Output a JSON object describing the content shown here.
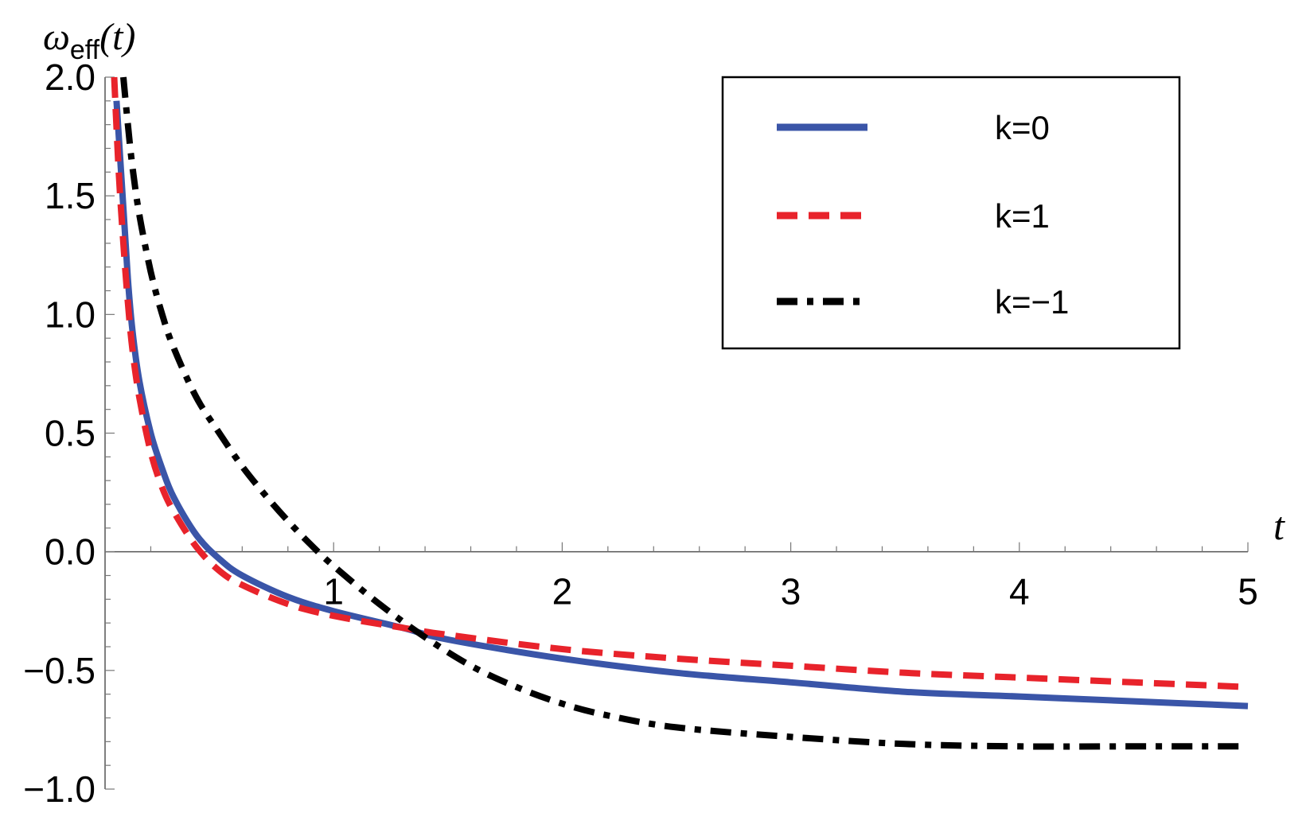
{
  "chart_data": {
    "type": "line",
    "title": "",
    "xlabel": "t",
    "ylabel": {
      "symbol": "ω",
      "subscript": "eff",
      "argument": "(t)"
    },
    "xlim": [
      0,
      5
    ],
    "ylim": [
      -1.0,
      2.0
    ],
    "xticks": [
      {
        "value": 1,
        "label": "1"
      },
      {
        "value": 2,
        "label": "2"
      },
      {
        "value": 3,
        "label": "3"
      },
      {
        "value": 4,
        "label": "4"
      },
      {
        "value": 5,
        "label": "5"
      }
    ],
    "yticks": [
      {
        "value": 2.0,
        "label": "2.0"
      },
      {
        "value": 1.5,
        "label": "1.5"
      },
      {
        "value": 1.0,
        "label": "1.0"
      },
      {
        "value": 0.5,
        "label": "0.5"
      },
      {
        "value": 0.0,
        "label": "0.0"
      },
      {
        "value": -0.5,
        "label": "−0.5"
      },
      {
        "value": -1.0,
        "label": "−1.0"
      }
    ],
    "grid": false,
    "legend": "top-right",
    "series": [
      {
        "name": "k=0",
        "color": "#3a55a8",
        "style": "solid",
        "x": [
          0.05,
          0.08,
          0.1,
          0.12,
          0.15,
          0.2,
          0.25,
          0.3,
          0.4,
          0.5,
          0.6,
          0.8,
          1.0,
          1.3,
          1.5,
          2.0,
          2.5,
          3.0,
          3.5,
          4.0,
          4.5,
          5.0
        ],
        "y": [
          1.9,
          1.45,
          1.15,
          0.93,
          0.72,
          0.5,
          0.35,
          0.23,
          0.07,
          -0.03,
          -0.1,
          -0.19,
          -0.25,
          -0.32,
          -0.37,
          -0.45,
          -0.51,
          -0.55,
          -0.59,
          -0.61,
          -0.63,
          -0.65
        ]
      },
      {
        "name": "k=1",
        "color": "#e8232b",
        "style": "dashed",
        "x": [
          0.04,
          0.06,
          0.08,
          0.1,
          0.12,
          0.15,
          0.2,
          0.25,
          0.3,
          0.4,
          0.5,
          0.6,
          0.8,
          1.0,
          1.3,
          1.5,
          2.0,
          2.5,
          3.0,
          3.5,
          4.0,
          4.5,
          5.0
        ],
        "y": [
          2.0,
          1.6,
          1.3,
          1.05,
          0.85,
          0.65,
          0.42,
          0.27,
          0.17,
          0.02,
          -0.08,
          -0.14,
          -0.22,
          -0.27,
          -0.32,
          -0.35,
          -0.41,
          -0.45,
          -0.48,
          -0.51,
          -0.53,
          -0.55,
          -0.57
        ]
      },
      {
        "name": "k=−1",
        "color": "#000000",
        "style": "dashdot",
        "x": [
          0.08,
          0.1,
          0.12,
          0.15,
          0.2,
          0.25,
          0.3,
          0.4,
          0.5,
          0.6,
          0.7,
          0.8,
          0.9,
          1.0,
          1.2,
          1.4,
          1.6,
          1.8,
          2.0,
          2.2,
          2.5,
          3.0,
          3.5,
          4.0,
          4.5,
          5.0
        ],
        "y": [
          2.0,
          1.8,
          1.62,
          1.42,
          1.18,
          1.0,
          0.86,
          0.65,
          0.5,
          0.36,
          0.24,
          0.13,
          0.03,
          -0.06,
          -0.22,
          -0.36,
          -0.48,
          -0.57,
          -0.64,
          -0.69,
          -0.74,
          -0.78,
          -0.81,
          -0.82,
          -0.82,
          -0.82
        ]
      }
    ]
  }
}
